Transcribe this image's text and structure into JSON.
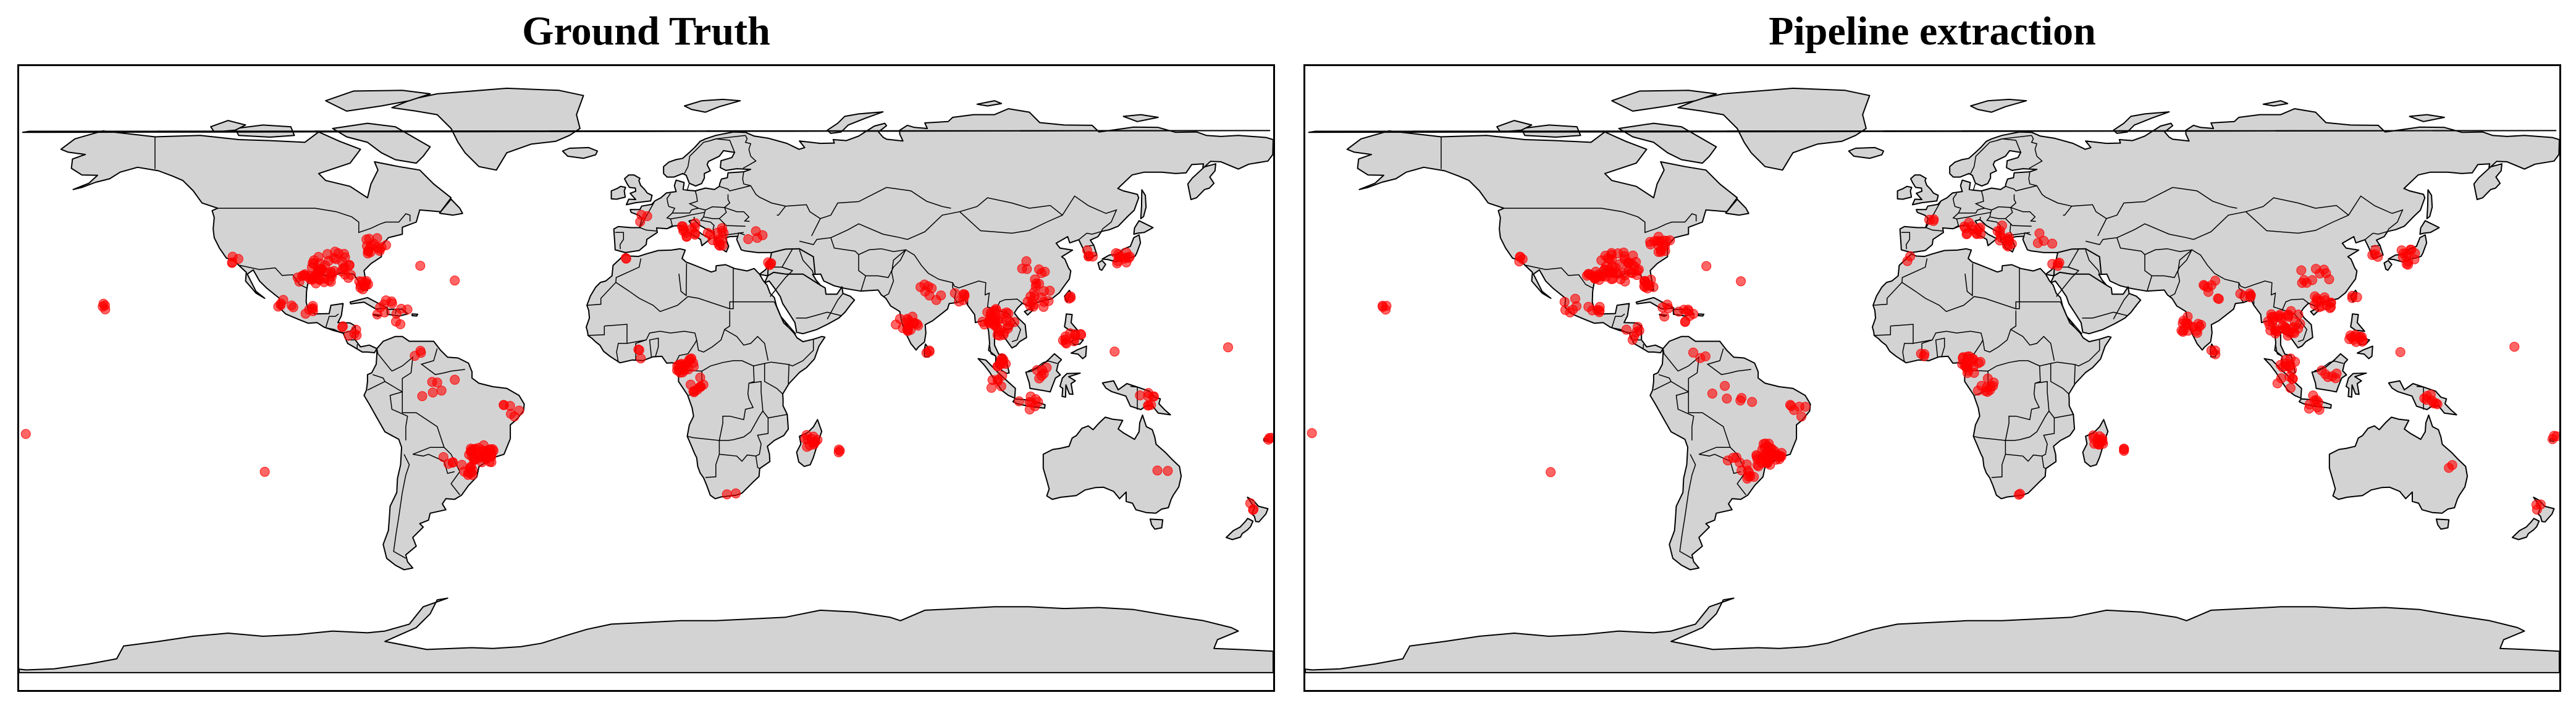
{
  "colors": {
    "land": "#d3d3d3",
    "coast": "#000000",
    "ocean": "#ffffff",
    "occurrence": "#ff0000"
  },
  "panels": [
    {
      "title": "Ground Truth"
    },
    {
      "title": "Pipeline extraction"
    }
  ],
  "map": {
    "projection": "equirectangular",
    "lon_range": [
      -180,
      180
    ],
    "lat_range": [
      -90,
      90
    ]
  },
  "occurrence_clusters": [
    {
      "region": "Hawaii",
      "lon": -156.5,
      "lat": 20.5,
      "n": 4,
      "spread": 1.5
    },
    {
      "region": "Mexico Pacific",
      "lon": -104,
      "lat": 21,
      "n": 6,
      "spread": 3
    },
    {
      "region": "US South",
      "lon": -90,
      "lat": 32,
      "n": 40,
      "spread": 6
    },
    {
      "region": "US Atlantic",
      "lon": -78,
      "lat": 38,
      "n": 16,
      "spread": 3.5
    },
    {
      "region": "Florida",
      "lon": -81.5,
      "lat": 27,
      "n": 10,
      "spread": 2
    },
    {
      "region": "Texas",
      "lon": -98,
      "lat": 29,
      "n": 8,
      "spread": 2.5
    },
    {
      "region": "Gulf coast",
      "lon": -94,
      "lat": 29.5,
      "n": 10,
      "spread": 3
    },
    {
      "region": "California",
      "lon": -118,
      "lat": 34,
      "n": 4,
      "spread": 1.5
    },
    {
      "region": "Bermuda",
      "lon": -64.8,
      "lat": 32.3,
      "n": 1,
      "spread": 0.2
    },
    {
      "region": "Mexico Gulf",
      "lon": -97,
      "lat": 20,
      "n": 6,
      "spread": 2
    },
    {
      "region": "Caribbean",
      "lon": -73,
      "lat": 19,
      "n": 12,
      "spread": 5
    },
    {
      "region": "Central America",
      "lon": -86,
      "lat": 13,
      "n": 6,
      "spread": 3
    },
    {
      "region": "Venezuela",
      "lon": -66,
      "lat": 8,
      "n": 3,
      "spread": 3
    },
    {
      "region": "Amazon",
      "lon": -58,
      "lat": -5,
      "n": 6,
      "spread": 7
    },
    {
      "region": "Brazil NE",
      "lon": -39,
      "lat": -9,
      "n": 6,
      "spread": 3
    },
    {
      "region": "Brazil SE",
      "lon": -47,
      "lat": -22,
      "n": 38,
      "spread": 4
    },
    {
      "region": "Brazil S",
      "lon": -52,
      "lat": -27,
      "n": 10,
      "spread": 3
    },
    {
      "region": "Paraguay",
      "lon": -57,
      "lat": -24,
      "n": 4,
      "spread": 2
    },
    {
      "region": "Easter Is.",
      "lon": -109.4,
      "lat": -27.1,
      "n": 1,
      "spread": 0.2
    },
    {
      "region": "Pacific east",
      "lon": -178,
      "lat": -16,
      "n": 1,
      "spread": 0.2
    },
    {
      "region": "France",
      "lon": -0.5,
      "lat": 46,
      "n": 3,
      "spread": 2
    },
    {
      "region": "Italy",
      "lon": 12,
      "lat": 43,
      "n": 12,
      "spread": 3
    },
    {
      "region": "Balkans",
      "lon": 20,
      "lat": 42,
      "n": 8,
      "spread": 3
    },
    {
      "region": "Greece",
      "lon": 22,
      "lat": 39,
      "n": 5,
      "spread": 1.5
    },
    {
      "region": "Turkey",
      "lon": 32,
      "lat": 40,
      "n": 4,
      "spread": 3
    },
    {
      "region": "Morocco",
      "lon": -6,
      "lat": 34,
      "n": 2,
      "spread": 1.5
    },
    {
      "region": "Levant",
      "lon": 35.5,
      "lat": 33,
      "n": 4,
      "spread": 1.5
    },
    {
      "region": "West Africa",
      "lon": -4,
      "lat": 7,
      "n": 3,
      "spread": 3
    },
    {
      "region": "Cameroon",
      "lon": 11,
      "lat": 4,
      "n": 20,
      "spread": 3.5
    },
    {
      "region": "Congo",
      "lon": 15,
      "lat": -2,
      "n": 10,
      "spread": 3
    },
    {
      "region": "South Africa",
      "lon": 24,
      "lat": -32,
      "n": 2,
      "spread": 3
    },
    {
      "region": "Madagascar",
      "lon": 47,
      "lat": -18,
      "n": 12,
      "spread": 2.5
    },
    {
      "region": "Reunion",
      "lon": 55.5,
      "lat": -21,
      "n": 3,
      "spread": 1
    },
    {
      "region": "India W",
      "lon": 75,
      "lat": 15,
      "n": 16,
      "spread": 4
    },
    {
      "region": "India N",
      "lon": 81,
      "lat": 25,
      "n": 8,
      "spread": 4
    },
    {
      "region": "Sri Lanka",
      "lon": 80.7,
      "lat": 7.5,
      "n": 3,
      "spread": 1
    },
    {
      "region": "Bangladesh",
      "lon": 90,
      "lat": 23.5,
      "n": 6,
      "spread": 2
    },
    {
      "region": "Indochina",
      "lon": 101,
      "lat": 16,
      "n": 35,
      "spread": 5
    },
    {
      "region": "Malaya",
      "lon": 102,
      "lat": 4,
      "n": 10,
      "spread": 2.5
    },
    {
      "region": "Sumatra",
      "lon": 101,
      "lat": -1,
      "n": 6,
      "spread": 3
    },
    {
      "region": "Java",
      "lon": 110,
      "lat": -7,
      "n": 8,
      "spread": 3
    },
    {
      "region": "Borneo",
      "lon": 114,
      "lat": 1,
      "n": 6,
      "spread": 3
    },
    {
      "region": "Philippines",
      "lon": 122,
      "lat": 12,
      "n": 12,
      "spread": 3
    },
    {
      "region": "South China",
      "lon": 113,
      "lat": 23,
      "n": 14,
      "spread": 4
    },
    {
      "region": "China central",
      "lon": 110,
      "lat": 30,
      "n": 10,
      "spread": 5
    },
    {
      "region": "Taiwan",
      "lon": 121,
      "lat": 23.5,
      "n": 3,
      "spread": 1
    },
    {
      "region": "Korea",
      "lon": 127.5,
      "lat": 36,
      "n": 4,
      "spread": 1.5
    },
    {
      "region": "Japan",
      "lon": 136,
      "lat": 35,
      "n": 12,
      "spread": 3
    },
    {
      "region": "New Guinea",
      "lon": 143,
      "lat": -6,
      "n": 8,
      "spread": 3
    },
    {
      "region": "Australia E",
      "lon": 149,
      "lat": -27,
      "n": 2,
      "spread": 3
    },
    {
      "region": "Palau",
      "lon": 134.5,
      "lat": 7.5,
      "n": 1,
      "spread": 0.2
    },
    {
      "region": "Marshall",
      "lon": 167,
      "lat": 9,
      "n": 1,
      "spread": 0.2
    },
    {
      "region": "Fiji",
      "lon": 178.5,
      "lat": -17,
      "n": 3,
      "spread": 1
    },
    {
      "region": "New Zealand",
      "lon": 174,
      "lat": -37,
      "n": 3,
      "spread": 1.5
    },
    {
      "region": "Mid-Atlantic",
      "lon": -55,
      "lat": 28,
      "n": 1,
      "spread": 0.2
    }
  ]
}
